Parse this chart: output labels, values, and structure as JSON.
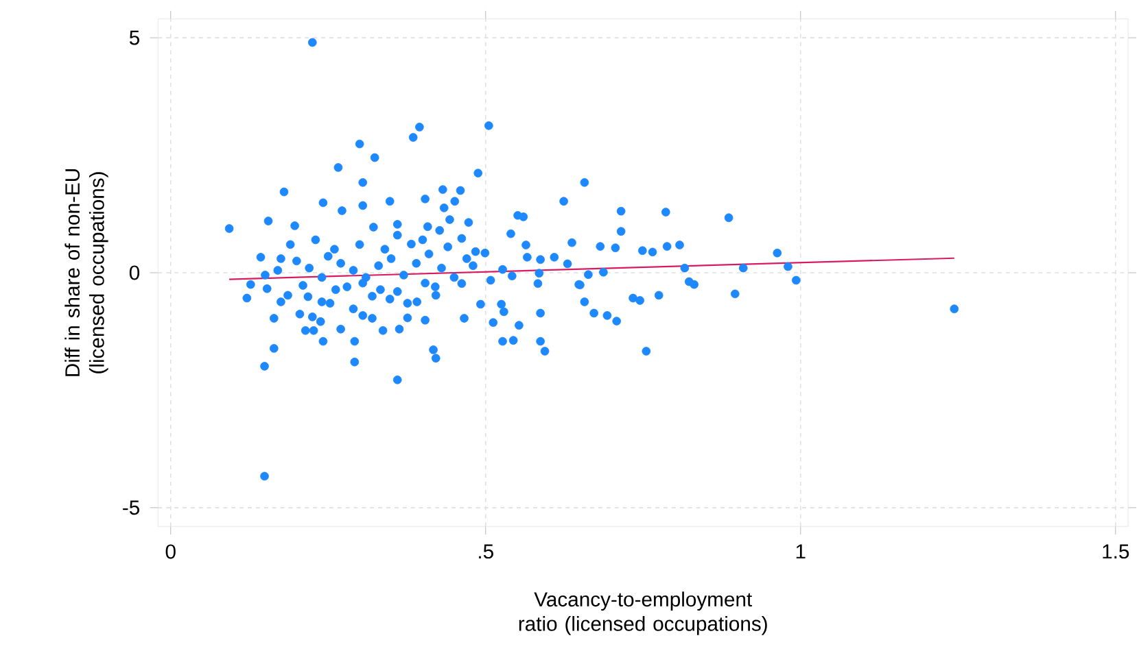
{
  "chart_data": {
    "type": "scatter",
    "xlabel": "Vacancy-to-employment ratio (licensed occupations)",
    "ylabel": "Diff in share of non-EU (licensed occupations)",
    "xlim": [
      -0.02,
      1.52
    ],
    "ylim": [
      -5.4,
      5.4
    ],
    "xticks": [
      0,
      {
        "value": 0.5,
        "label": ".5"
      },
      1,
      1.5
    ],
    "yticks": [
      -5,
      0,
      5
    ],
    "grid": true,
    "marker": "circle",
    "series": [
      {
        "color": "#1e88ff",
        "x": [
          0.093,
          0.155,
          0.18,
          0.197,
          0.242,
          0.266,
          0.272,
          0.3,
          0.305,
          0.324,
          0.305,
          0.348,
          0.385,
          0.322,
          0.36,
          0.143,
          0.175,
          0.225,
          0.395,
          0.505,
          0.488,
          0.657,
          0.404,
          0.432,
          0.46,
          0.451,
          0.434,
          0.443,
          0.473,
          0.408,
          0.427,
          0.624,
          0.551,
          0.56,
          0.54,
          0.715,
          0.715,
          0.564,
          0.637,
          0.682,
          0.706,
          0.462,
          0.484,
          0.499,
          0.566,
          0.587,
          0.609,
          0.63,
          0.382,
          0.527,
          0.508,
          0.542,
          0.585,
          0.648,
          0.663,
          0.687,
          0.404,
          0.421,
          0.391,
          0.466,
          0.492,
          0.525,
          0.529,
          0.512,
          0.553,
          0.527,
          0.544,
          0.587,
          0.587,
          0.594,
          0.583,
          0.65,
          0.657,
          0.672,
          0.693,
          0.708,
          0.417,
          0.421,
          0.404,
          0.376,
          0.462,
          0.786,
          0.886,
          0.749,
          0.765,
          0.788,
          0.808,
          0.963,
          0.816,
          0.909,
          0.98,
          0.823,
          0.831,
          0.993,
          0.896,
          0.734,
          0.745,
          0.775,
          0.755,
          1.244,
          0.127,
          0.121,
          0.153,
          0.164,
          0.175,
          0.186,
          0.205,
          0.214,
          0.227,
          0.242,
          0.225,
          0.238,
          0.24,
          0.218,
          0.164,
          0.149,
          0.149,
          0.27,
          0.292,
          0.292,
          0.36,
          0.337,
          0.305,
          0.32,
          0.363,
          0.29,
          0.253,
          0.333,
          0.348,
          0.262,
          0.21,
          0.305,
          0.376,
          0.2,
          0.22,
          0.25,
          0.27,
          0.29,
          0.31,
          0.33,
          0.35,
          0.37,
          0.39,
          0.41,
          0.43,
          0.45,
          0.47,
          0.26,
          0.3,
          0.34,
          0.36,
          0.4,
          0.24,
          0.28,
          0.32,
          0.36,
          0.42,
          0.44,
          0.19,
          0.23,
          0.17,
          0.15,
          0.48
        ],
        "values": [
          0.94,
          1.1,
          1.72,
          1.0,
          1.49,
          2.24,
          1.32,
          2.74,
          1.92,
          2.45,
          1.43,
          1.52,
          2.88,
          0.97,
          1.03,
          0.33,
          0.3,
          4.9,
          3.1,
          3.13,
          2.12,
          1.92,
          1.57,
          1.77,
          1.75,
          1.52,
          1.38,
          1.13,
          1.07,
          0.98,
          0.9,
          1.52,
          1.22,
          1.19,
          0.83,
          1.31,
          0.88,
          0.59,
          0.64,
          0.56,
          0.53,
          0.73,
          0.45,
          0.42,
          0.33,
          0.28,
          0.33,
          0.19,
          0.61,
          0.07,
          -0.16,
          -0.07,
          -0.01,
          -0.25,
          -0.04,
          0.01,
          -0.22,
          -0.48,
          -0.62,
          -0.97,
          -0.67,
          -0.67,
          -0.83,
          -1.06,
          -1.12,
          -1.46,
          -1.44,
          -0.86,
          -1.46,
          -1.67,
          -0.23,
          -0.26,
          -0.62,
          -0.86,
          -0.91,
          -1.03,
          -1.64,
          -1.82,
          -1.01,
          -0.96,
          -0.23,
          1.29,
          1.17,
          0.47,
          0.44,
          0.56,
          0.59,
          0.42,
          0.1,
          0.1,
          0.13,
          -0.19,
          -0.25,
          -0.16,
          -0.45,
          -0.54,
          -0.59,
          -0.48,
          -1.67,
          -0.77,
          -0.25,
          -0.54,
          -0.34,
          -0.97,
          -0.62,
          -0.48,
          -0.88,
          -1.23,
          -1.23,
          -1.46,
          -0.94,
          -1.04,
          -0.62,
          -0.51,
          -1.61,
          -1.99,
          -4.33,
          -1.2,
          -1.46,
          -1.9,
          -2.28,
          -1.23,
          -0.91,
          -0.97,
          -1.2,
          -0.77,
          -0.65,
          -0.36,
          -0.56,
          -0.36,
          -0.27,
          -0.22,
          -0.65,
          0.25,
          0.1,
          0.35,
          0.2,
          0.05,
          -0.1,
          0.15,
          0.3,
          -0.05,
          0.2,
          0.4,
          0.1,
          -0.1,
          0.3,
          0.5,
          0.6,
          0.5,
          0.8,
          0.7,
          -0.1,
          -0.3,
          -0.5,
          -0.4,
          -0.3,
          0.55,
          0.6,
          0.7,
          0.05,
          -0.05,
          0.15
        ]
      },
      {
        "type": "line",
        "color": "#d81b60",
        "marker": "none",
        "x": [
          0.093,
          1.244
        ],
        "values": [
          -0.14,
          0.31
        ]
      }
    ]
  }
}
